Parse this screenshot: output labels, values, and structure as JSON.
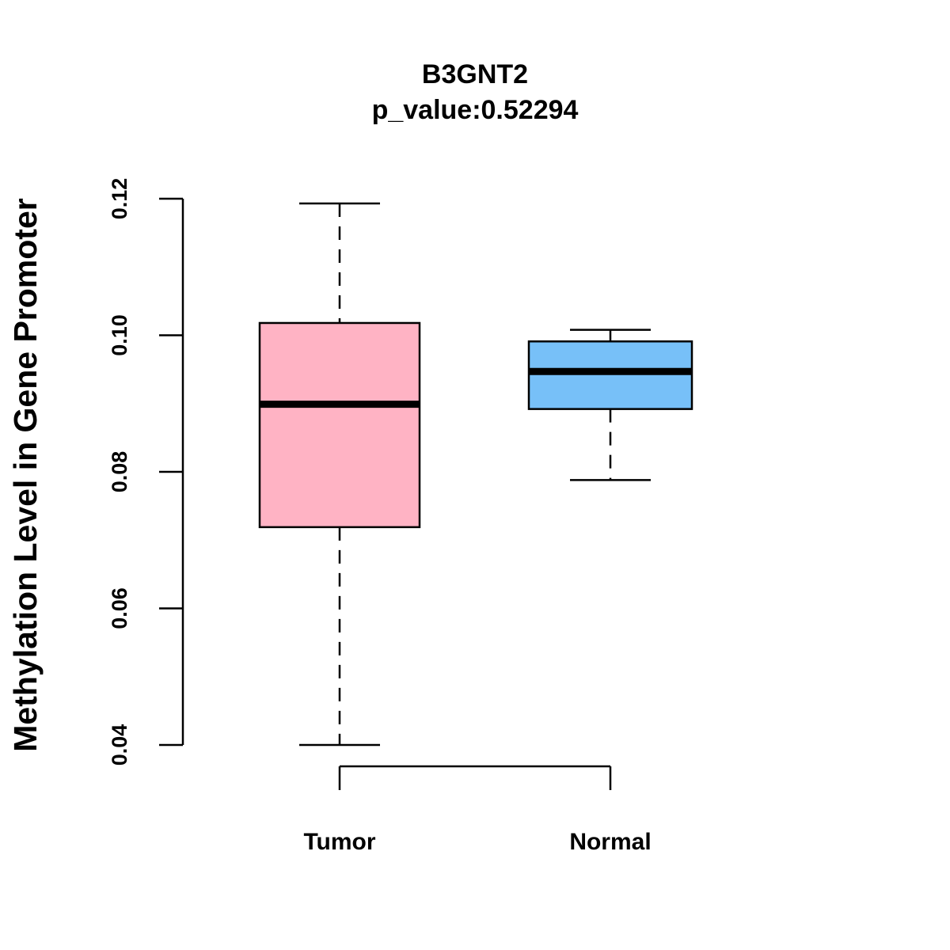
{
  "chart_data": {
    "type": "box",
    "title": "B3GNT2",
    "subtitle": "p_value:0.52294",
    "xlabel": "",
    "ylabel": "Methylation Level in Gene Promoter",
    "ylim": [
      0.04,
      0.12
    ],
    "yticks": [
      0.04,
      0.06,
      0.08,
      0.1,
      0.12
    ],
    "ytick_labels": [
      "0.04",
      "0.06",
      "0.08",
      "0.10",
      "0.12"
    ],
    "categories": [
      "Tumor",
      "Normal"
    ],
    "grid": false,
    "series": [
      {
        "name": "Tumor",
        "whisker_low": 0.04,
        "q1": 0.0719,
        "median": 0.0899,
        "q3": 0.1018,
        "whisker_high": 0.1193,
        "color": "#FFB3C4"
      },
      {
        "name": "Normal",
        "whisker_low": 0.0788,
        "q1": 0.0892,
        "median": 0.0947,
        "q3": 0.0991,
        "whisker_high": 0.1008,
        "color": "#77C0F8"
      }
    ]
  }
}
